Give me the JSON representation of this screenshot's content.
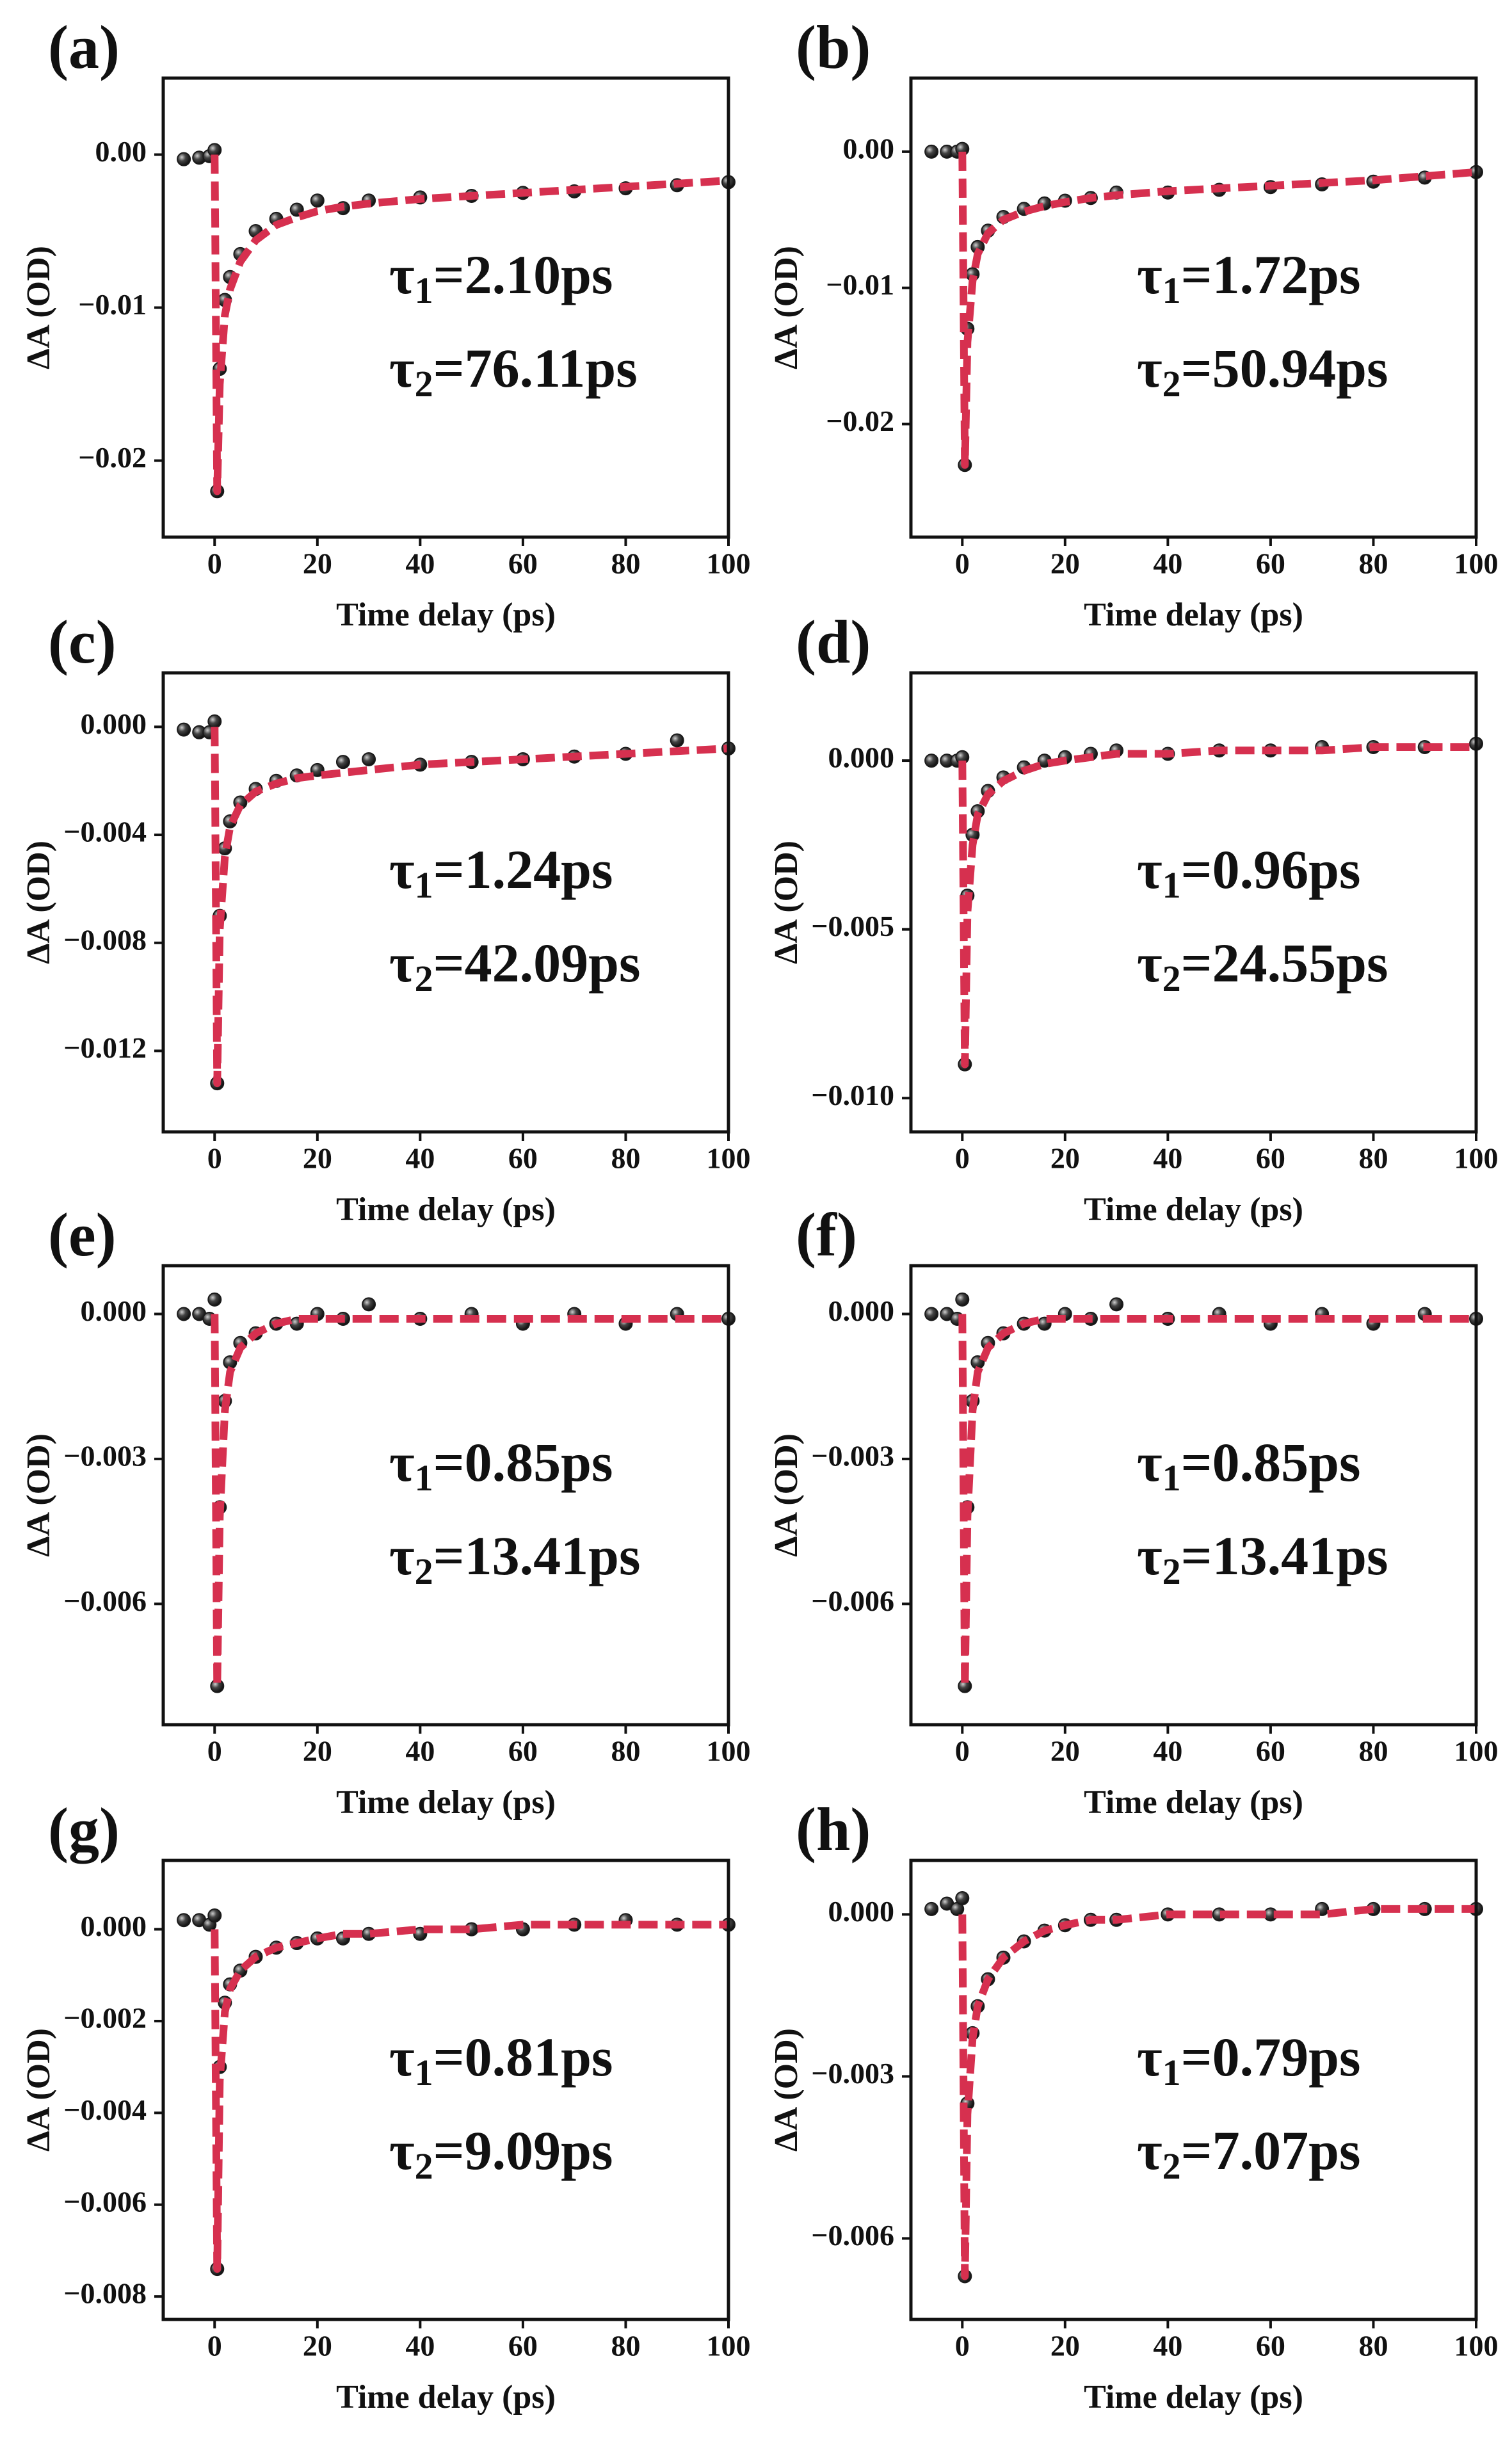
{
  "chart_data": [
    {
      "type": "scatter",
      "panel_label": "(a)",
      "xlabel": "Time delay (ps)",
      "ylabel": "ΔA (OD)",
      "x": [
        -6,
        -3,
        -1,
        0,
        0.5,
        1,
        2,
        3,
        5,
        8,
        12,
        16,
        20,
        25,
        30,
        40,
        50,
        60,
        70,
        80,
        90,
        100
      ],
      "series": [
        {
          "mode": "markers",
          "color": "#1a1a1a",
          "values": [
            -0.0003,
            -0.0002,
            -0.0001,
            0.0003,
            -0.022,
            -0.014,
            -0.0095,
            -0.008,
            -0.0065,
            -0.005,
            -0.0042,
            -0.0036,
            -0.003,
            -0.0035,
            -0.003,
            -0.0028,
            -0.0027,
            -0.0025,
            -0.0024,
            -0.0022,
            -0.002,
            -0.0018
          ]
        },
        {
          "mode": "lines",
          "color": "#d6304f",
          "values": [
            null,
            null,
            null,
            0,
            -0.022,
            -0.015,
            -0.0105,
            -0.0088,
            -0.007,
            -0.0056,
            -0.0046,
            -0.0041,
            -0.0037,
            -0.0034,
            -0.0032,
            -0.0029,
            -0.0027,
            -0.0025,
            -0.0023,
            -0.0021,
            -0.0019,
            -0.0017
          ]
        }
      ],
      "xlim": [
        -10,
        100
      ],
      "ylim": [
        -0.025,
        0.005
      ],
      "xticks": [
        0,
        20,
        40,
        60,
        80,
        100
      ],
      "yticks": [
        {
          "value": 0,
          "label": "0.00"
        },
        {
          "value": -0.01,
          "label": "−0.01"
        },
        {
          "value": -0.02,
          "label": "−0.02"
        }
      ],
      "annotations": [
        {
          "symbol": "τ",
          "subscript": "1",
          "text": "=2.10ps"
        },
        {
          "symbol": "τ",
          "subscript": "2",
          "text": "=76.11ps"
        }
      ]
    },
    {
      "type": "scatter",
      "panel_label": "(b)",
      "xlabel": "Time delay (ps)",
      "ylabel": "ΔA (OD)",
      "x": [
        -6,
        -3,
        -1,
        0,
        0.5,
        1,
        2,
        3,
        5,
        8,
        12,
        16,
        20,
        25,
        30,
        40,
        50,
        60,
        70,
        80,
        90,
        100
      ],
      "series": [
        {
          "mode": "markers",
          "color": "#1a1a1a",
          "values": [
            0,
            0,
            0,
            0.0002,
            -0.023,
            -0.013,
            -0.009,
            -0.007,
            -0.0058,
            -0.0048,
            -0.0042,
            -0.0038,
            -0.0036,
            -0.0034,
            -0.003,
            -0.003,
            -0.0028,
            -0.0026,
            -0.0024,
            -0.0022,
            -0.0019,
            -0.0015
          ]
        },
        {
          "mode": "lines",
          "color": "#d6304f",
          "values": [
            null,
            null,
            null,
            0,
            -0.023,
            -0.014,
            -0.0095,
            -0.0075,
            -0.006,
            -0.005,
            -0.0044,
            -0.004,
            -0.0037,
            -0.0034,
            -0.0032,
            -0.0029,
            -0.0027,
            -0.0025,
            -0.0023,
            -0.0021,
            -0.0018,
            -0.0015
          ]
        }
      ],
      "xlim": [
        -10,
        100
      ],
      "ylim": [
        -0.0283,
        0.0054
      ],
      "xticks": [
        0,
        20,
        40,
        60,
        80,
        100
      ],
      "yticks": [
        {
          "value": 0,
          "label": "0.00"
        },
        {
          "value": -0.01,
          "label": "−0.01"
        },
        {
          "value": -0.02,
          "label": "−0.02"
        }
      ],
      "annotations": [
        {
          "symbol": "τ",
          "subscript": "1",
          "text": "=1.72ps"
        },
        {
          "symbol": "τ",
          "subscript": "2",
          "text": "=50.94ps"
        }
      ]
    },
    {
      "type": "scatter",
      "panel_label": "(c)",
      "xlabel": "Time delay (ps)",
      "ylabel": "ΔA (OD)",
      "x": [
        -6,
        -3,
        -1,
        0,
        0.5,
        1,
        2,
        3,
        5,
        8,
        12,
        16,
        20,
        25,
        30,
        40,
        50,
        60,
        70,
        80,
        90,
        100
      ],
      "series": [
        {
          "mode": "markers",
          "color": "#1a1a1a",
          "values": [
            -0.0001,
            -0.0002,
            -0.0002,
            0.0002,
            -0.0132,
            -0.007,
            -0.0045,
            -0.0035,
            -0.0028,
            -0.0023,
            -0.002,
            -0.0018,
            -0.0016,
            -0.0013,
            -0.0012,
            -0.0014,
            -0.0013,
            -0.0012,
            -0.0011,
            -0.001,
            -0.0005,
            -0.0008
          ]
        },
        {
          "mode": "lines",
          "color": "#d6304f",
          "values": [
            null,
            null,
            null,
            0,
            -0.0132,
            -0.0075,
            -0.0048,
            -0.0037,
            -0.0029,
            -0.0024,
            -0.0021,
            -0.0019,
            -0.0018,
            -0.0017,
            -0.0016,
            -0.0014,
            -0.0013,
            -0.0012,
            -0.0011,
            -0.001,
            -0.0009,
            -0.0008
          ]
        }
      ],
      "xlim": [
        -10,
        100
      ],
      "ylim": [
        -0.015,
        0.002
      ],
      "xticks": [
        0,
        20,
        40,
        60,
        80,
        100
      ],
      "yticks": [
        {
          "value": 0,
          "label": "0.000"
        },
        {
          "value": -0.004,
          "label": "−0.004"
        },
        {
          "value": -0.008,
          "label": "−0.008"
        },
        {
          "value": -0.012,
          "label": "−0.012"
        }
      ],
      "annotations": [
        {
          "symbol": "τ",
          "subscript": "1",
          "text": "=1.24ps"
        },
        {
          "symbol": "τ",
          "subscript": "2",
          "text": "=42.09ps"
        }
      ]
    },
    {
      "type": "scatter",
      "panel_label": "(d)",
      "xlabel": "Time delay (ps)",
      "ylabel": "ΔA (OD)",
      "x": [
        -6,
        -3,
        -1,
        0,
        0.5,
        1,
        2,
        3,
        5,
        8,
        12,
        16,
        20,
        25,
        30,
        40,
        50,
        60,
        70,
        80,
        90,
        100
      ],
      "series": [
        {
          "mode": "markers",
          "color": "#1a1a1a",
          "values": [
            0,
            0,
            0,
            0.0001,
            -0.009,
            -0.004,
            -0.0022,
            -0.0015,
            -0.0009,
            -0.0005,
            -0.0002,
            0,
            0.0001,
            0.0002,
            0.0003,
            0.0002,
            0.0003,
            0.0003,
            0.0004,
            0.0004,
            0.0004,
            0.0005
          ]
        },
        {
          "mode": "lines",
          "color": "#d6304f",
          "values": [
            null,
            null,
            null,
            0,
            -0.009,
            -0.0045,
            -0.0025,
            -0.0016,
            -0.001,
            -0.0006,
            -0.0003,
            -0.0001,
            0,
            0.0001,
            0.0002,
            0.0002,
            0.0003,
            0.0003,
            0.0003,
            0.0004,
            0.0004,
            0.0004
          ]
        }
      ],
      "xlim": [
        -10,
        100
      ],
      "ylim": [
        -0.011,
        0.0026
      ],
      "xticks": [
        0,
        20,
        40,
        60,
        80,
        100
      ],
      "yticks": [
        {
          "value": 0,
          "label": "0.000"
        },
        {
          "value": -0.005,
          "label": "−0.005"
        },
        {
          "value": -0.01,
          "label": "−0.010"
        }
      ],
      "annotations": [
        {
          "symbol": "τ",
          "subscript": "1",
          "text": "=0.96ps"
        },
        {
          "symbol": "τ",
          "subscript": "2",
          "text": "=24.55ps"
        }
      ]
    },
    {
      "type": "scatter",
      "panel_label": "(e)",
      "xlabel": "Time delay (ps)",
      "ylabel": "ΔA (OD)",
      "x": [
        -6,
        -3,
        -1,
        0,
        0.5,
        1,
        2,
        3,
        5,
        8,
        12,
        16,
        20,
        25,
        30,
        40,
        50,
        60,
        70,
        80,
        90,
        100
      ],
      "series": [
        {
          "mode": "markers",
          "color": "#1a1a1a",
          "values": [
            0,
            0,
            -0.0001,
            0.0003,
            -0.0077,
            -0.004,
            -0.0018,
            -0.001,
            -0.0006,
            -0.0004,
            -0.0002,
            -0.0002,
            0,
            -0.0001,
            0.0002,
            -0.0001,
            0,
            -0.0002,
            0,
            -0.0002,
            0,
            -0.0001
          ]
        },
        {
          "mode": "lines",
          "color": "#d6304f",
          "values": [
            null,
            null,
            null,
            0,
            -0.0077,
            -0.0042,
            -0.002,
            -0.0012,
            -0.0007,
            -0.0004,
            -0.0002,
            -0.0001,
            -0.0001,
            -0.0001,
            -0.0001,
            -0.0001,
            -0.0001,
            -0.0001,
            -0.0001,
            -0.0001,
            -0.0001,
            -0.0001
          ]
        }
      ],
      "xlim": [
        -10,
        100
      ],
      "ylim": [
        -0.0085,
        0.001
      ],
      "xticks": [
        0,
        20,
        40,
        60,
        80,
        100
      ],
      "yticks": [
        {
          "value": 0,
          "label": "0.000"
        },
        {
          "value": -0.003,
          "label": "−0.003"
        },
        {
          "value": -0.006,
          "label": "−0.006"
        }
      ],
      "annotations": [
        {
          "symbol": "τ",
          "subscript": "1",
          "text": "=0.85ps"
        },
        {
          "symbol": "τ",
          "subscript": "2",
          "text": "=13.41ps"
        }
      ]
    },
    {
      "type": "scatter",
      "panel_label": "(f)",
      "xlabel": "Time delay (ps)",
      "ylabel": "ΔA (OD)",
      "x": [
        -6,
        -3,
        -1,
        0,
        0.5,
        1,
        2,
        3,
        5,
        8,
        12,
        16,
        20,
        25,
        30,
        40,
        50,
        60,
        70,
        80,
        90,
        100
      ],
      "series": [
        {
          "mode": "markers",
          "color": "#1a1a1a",
          "values": [
            0,
            0,
            -0.0001,
            0.0003,
            -0.0077,
            -0.004,
            -0.0018,
            -0.001,
            -0.0006,
            -0.0004,
            -0.0002,
            -0.0002,
            0,
            -0.0001,
            0.0002,
            -0.0001,
            0,
            -0.0002,
            0,
            -0.0002,
            0,
            -0.0001
          ]
        },
        {
          "mode": "lines",
          "color": "#d6304f",
          "values": [
            null,
            null,
            null,
            0,
            -0.0077,
            -0.0042,
            -0.002,
            -0.0012,
            -0.0007,
            -0.0004,
            -0.0002,
            -0.0001,
            -0.0001,
            -0.0001,
            -0.0001,
            -0.0001,
            -0.0001,
            -0.0001,
            -0.0001,
            -0.0001,
            -0.0001,
            -0.0001
          ]
        }
      ],
      "xlim": [
        -10,
        100
      ],
      "ylim": [
        -0.0085,
        0.001
      ],
      "xticks": [
        0,
        20,
        40,
        60,
        80,
        100
      ],
      "yticks": [
        {
          "value": 0,
          "label": "0.000"
        },
        {
          "value": -0.003,
          "label": "−0.003"
        },
        {
          "value": -0.006,
          "label": "−0.006"
        }
      ],
      "annotations": [
        {
          "symbol": "τ",
          "subscript": "1",
          "text": "=0.85ps"
        },
        {
          "symbol": "τ",
          "subscript": "2",
          "text": "=13.41ps"
        }
      ]
    },
    {
      "type": "scatter",
      "panel_label": "(g)",
      "xlabel": "Time delay (ps)",
      "ylabel": "ΔA (OD)",
      "x": [
        -6,
        -3,
        -1,
        0,
        0.5,
        1,
        2,
        3,
        5,
        8,
        12,
        16,
        20,
        25,
        30,
        40,
        50,
        60,
        70,
        80,
        90,
        100
      ],
      "series": [
        {
          "mode": "markers",
          "color": "#1a1a1a",
          "values": [
            0.0002,
            0.0002,
            0.0001,
            0.0003,
            -0.0074,
            -0.003,
            -0.0016,
            -0.0012,
            -0.0009,
            -0.0006,
            -0.0004,
            -0.0003,
            -0.0002,
            -0.0002,
            -0.0001,
            -0.0001,
            0,
            0,
            0.0001,
            0.0002,
            0.0001,
            0.0001
          ]
        },
        {
          "mode": "lines",
          "color": "#d6304f",
          "values": [
            null,
            null,
            null,
            0,
            -0.0074,
            -0.0033,
            -0.0018,
            -0.0013,
            -0.0009,
            -0.0006,
            -0.0004,
            -0.0003,
            -0.0002,
            -0.0001,
            -0.0001,
            0,
            0,
            0.0001,
            0.0001,
            0.0001,
            0.0001,
            0.0001
          ]
        }
      ],
      "xlim": [
        -10,
        100
      ],
      "ylim": [
        -0.0085,
        0.0015
      ],
      "xticks": [
        0,
        20,
        40,
        60,
        80,
        100
      ],
      "yticks": [
        {
          "value": 0,
          "label": "0.000"
        },
        {
          "value": -0.002,
          "label": "−0.002"
        },
        {
          "value": -0.004,
          "label": "−0.004"
        },
        {
          "value": -0.006,
          "label": "−0.006"
        },
        {
          "value": -0.008,
          "label": "−0.008"
        }
      ],
      "annotations": [
        {
          "symbol": "τ",
          "subscript": "1",
          "text": "=0.81ps"
        },
        {
          "symbol": "τ",
          "subscript": "2",
          "text": "=9.09ps"
        }
      ]
    },
    {
      "type": "scatter",
      "panel_label": "(h)",
      "xlabel": "Time delay (ps)",
      "ylabel": "ΔA (OD)",
      "x": [
        -6,
        -3,
        -1,
        0,
        0.5,
        1,
        2,
        3,
        5,
        8,
        12,
        16,
        20,
        25,
        30,
        40,
        50,
        60,
        70,
        80,
        90,
        100
      ],
      "series": [
        {
          "mode": "markers",
          "color": "#1a1a1a",
          "values": [
            0.0001,
            0.0002,
            0.0001,
            0.0003,
            -0.0067,
            -0.0035,
            -0.0022,
            -0.0017,
            -0.0012,
            -0.0008,
            -0.0005,
            -0.0003,
            -0.0002,
            -0.0001,
            -0.0001,
            0,
            0,
            0,
            0.0001,
            0.0001,
            0.0001,
            0.0001
          ]
        },
        {
          "mode": "lines",
          "color": "#d6304f",
          "values": [
            null,
            null,
            null,
            0,
            -0.0067,
            -0.0037,
            -0.0023,
            -0.0017,
            -0.0012,
            -0.0008,
            -0.0005,
            -0.0003,
            -0.0002,
            -0.0001,
            -0.0001,
            0,
            0,
            0,
            0,
            0.0001,
            0.0001,
            0.0001
          ]
        }
      ],
      "xlim": [
        -10,
        100
      ],
      "ylim": [
        -0.0075,
        0.001
      ],
      "xticks": [
        0,
        20,
        40,
        60,
        80,
        100
      ],
      "yticks": [
        {
          "value": 0,
          "label": "0.000"
        },
        {
          "value": -0.003,
          "label": "−0.003"
        },
        {
          "value": -0.006,
          "label": "−0.006"
        }
      ],
      "annotations": [
        {
          "symbol": "τ",
          "subscript": "1",
          "text": "=0.79ps"
        },
        {
          "symbol": "τ",
          "subscript": "2",
          "text": "=7.07ps"
        }
      ]
    }
  ]
}
